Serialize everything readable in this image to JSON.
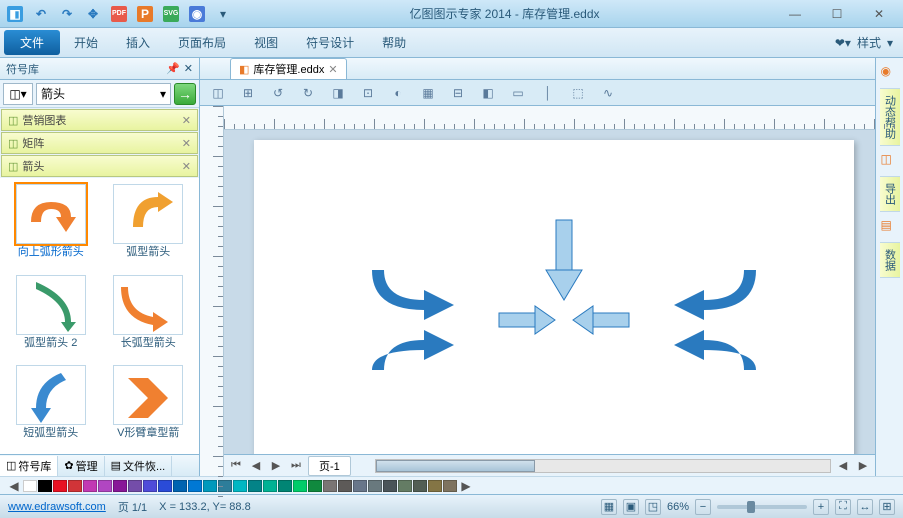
{
  "titlebar": {
    "title": "亿图图示专家 2014 - 库存管理.eddx",
    "qat_icons": [
      {
        "name": "app-icon",
        "bg": "#3a9de0",
        "glyph": "◧"
      },
      {
        "name": "undo-icon",
        "bg": "transparent",
        "glyph": "↶",
        "color": "#2a7abf"
      },
      {
        "name": "redo-icon",
        "bg": "transparent",
        "glyph": "↷",
        "color": "#2a7abf"
      },
      {
        "name": "move-icon",
        "bg": "transparent",
        "glyph": "✥",
        "color": "#2a7abf"
      },
      {
        "name": "pdf-icon",
        "bg": "#e85a4a",
        "glyph": "PDF"
      },
      {
        "name": "ppt-icon",
        "bg": "#e87a2a",
        "glyph": "P"
      },
      {
        "name": "svg-icon",
        "bg": "#3aaa5a",
        "glyph": "SVG"
      },
      {
        "name": "html-icon",
        "bg": "#4a7ad8",
        "glyph": "◉"
      }
    ]
  },
  "menubar": {
    "file": "文件",
    "items": [
      "开始",
      "插入",
      "页面布局",
      "视图",
      "符号设计",
      "帮助"
    ],
    "style_label": "样式"
  },
  "left_panel": {
    "title": "符号库",
    "filter_value": "箭头",
    "categories": [
      {
        "name": "营销图表"
      },
      {
        "name": "矩阵"
      },
      {
        "name": "箭头"
      }
    ],
    "shapes": [
      {
        "name": "向上弧形箭头",
        "svg_color": "#f08030",
        "selected": true
      },
      {
        "name": "弧型箭头",
        "svg_color": "#f0a030"
      },
      {
        "name": "弧型箭头 2",
        "svg_color": "#3a9a6a"
      },
      {
        "name": "长弧型箭头",
        "svg_color": "#f08030"
      },
      {
        "name": "短弧型箭头",
        "svg_color": "#3a8ad0"
      },
      {
        "name": "V形臂章型箭",
        "svg_color": "#f08030"
      }
    ],
    "tabs": [
      {
        "label": "符号库",
        "icon": "◫",
        "active": true
      },
      {
        "label": "管理",
        "icon": "✿"
      },
      {
        "label": "文件恢...",
        "icon": "▤"
      }
    ]
  },
  "document": {
    "tab_name": "库存管理.eddx",
    "page_tab": "页-1"
  },
  "right_panel": {
    "tabs": [
      "动态帮助",
      "导出",
      "数据"
    ]
  },
  "color_palette": [
    "#ffffff",
    "#000000",
    "#e81123",
    "#d13438",
    "#c239b3",
    "#b146c2",
    "#881798",
    "#744da9",
    "#4f4bd9",
    "#2a4bd8",
    "#0063b1",
    "#0078d4",
    "#0099bc",
    "#2d7d9a",
    "#00b7c3",
    "#038387",
    "#00b294",
    "#018574",
    "#00cc6a",
    "#10893e",
    "#7a7574",
    "#5d5a58",
    "#68768a",
    "#69797e",
    "#4a5459",
    "#647c64",
    "#525e54",
    "#847545",
    "#7e735f"
  ],
  "statusbar": {
    "url": "www.edrawsoft.com",
    "page_info": "页 1/1",
    "coords": "X = 133.2, Y= 88.8",
    "zoom": "66%"
  },
  "canvas": {
    "arrows_color": "#2a7abf",
    "arrows_light": "#a8d0ec"
  }
}
